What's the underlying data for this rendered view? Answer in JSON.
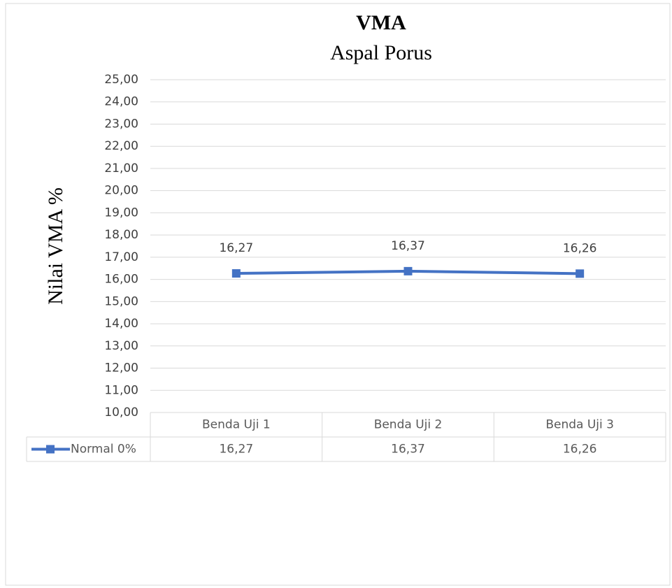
{
  "chart_data": {
    "type": "line",
    "title": "VMA",
    "subtitle": "Aspal Porus",
    "y_label": "Nilai VMA %",
    "categories": [
      "Benda Uji 1",
      "Benda Uji 2",
      "Benda Uji 3"
    ],
    "series": [
      {
        "name": "Normal 0%",
        "color": "#4472c4",
        "values": [
          16.27,
          16.37,
          16.26
        ],
        "value_labels": [
          "16,27",
          "16,37",
          "16,26"
        ]
      }
    ],
    "ylim": [
      10,
      25
    ],
    "yticks": [
      {
        "value": 10,
        "label": "10,00"
      },
      {
        "value": 11,
        "label": "11,00"
      },
      {
        "value": 12,
        "label": "12,00"
      },
      {
        "value": 13,
        "label": "13,00"
      },
      {
        "value": 14,
        "label": "14,00"
      },
      {
        "value": 15,
        "label": "15,00"
      },
      {
        "value": 16,
        "label": "16,00"
      },
      {
        "value": 17,
        "label": "17,00"
      },
      {
        "value": 18,
        "label": "18,00"
      },
      {
        "value": 19,
        "label": "19,00"
      },
      {
        "value": 20,
        "label": "20,00"
      },
      {
        "value": 21,
        "label": "21,00"
      },
      {
        "value": 22,
        "label": "22,00"
      },
      {
        "value": 23,
        "label": "23,00"
      },
      {
        "value": 24,
        "label": "24,00"
      },
      {
        "value": 25,
        "label": "25,00"
      }
    ],
    "grid": true,
    "data_table": true
  }
}
